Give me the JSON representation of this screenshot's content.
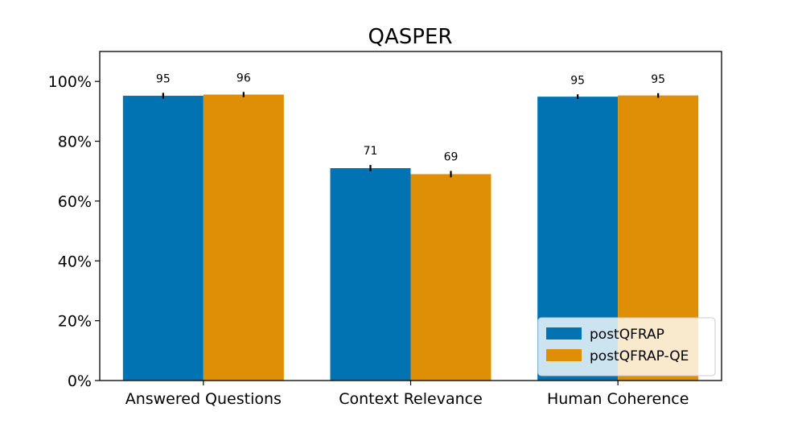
{
  "chart_data": {
    "type": "bar",
    "title": "QASPER",
    "xlabel": "",
    "ylabel": "",
    "categories": [
      "Answered Questions",
      "Context Relevance",
      "Human Coherence"
    ],
    "series": [
      {
        "name": "postQFRAP",
        "values": [
          95.2,
          71.0,
          94.9
        ],
        "labels": [
          "95",
          "71",
          "95"
        ],
        "color": "#0173b2"
      },
      {
        "name": "postQFRAP-QE",
        "values": [
          95.6,
          69.0,
          95.3
        ],
        "labels": [
          "96",
          "69",
          "95"
        ],
        "color": "#de8f05"
      }
    ],
    "error_bars": [
      [
        0.7,
        0.8,
        0.5
      ],
      [
        0.6,
        0.8,
        0.5
      ]
    ],
    "ylim": [
      0,
      110
    ],
    "yticks": [
      0,
      20,
      40,
      60,
      80,
      100
    ],
    "ytick_labels": [
      "0%",
      "20%",
      "40%",
      "60%",
      "80%",
      "100%"
    ],
    "grid": false,
    "legend_position": "lower-right"
  }
}
